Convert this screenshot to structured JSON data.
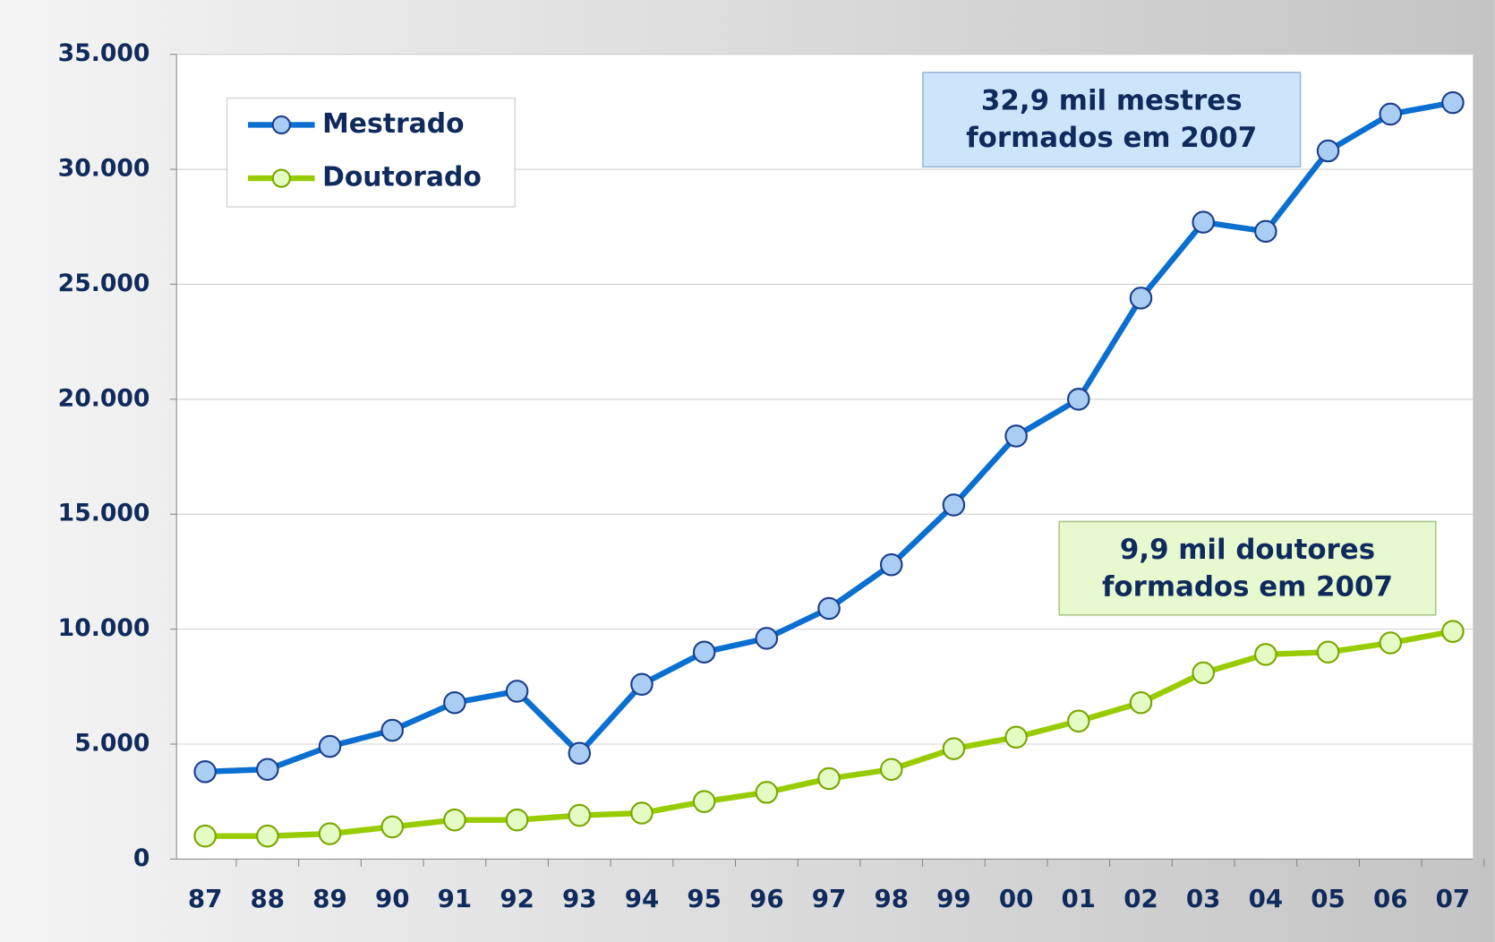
{
  "chart_data": {
    "type": "line",
    "categories": [
      "87",
      "88",
      "89",
      "90",
      "91",
      "92",
      "93",
      "94",
      "95",
      "96",
      "97",
      "98",
      "99",
      "00",
      "01",
      "02",
      "03",
      "04",
      "05",
      "06",
      "07"
    ],
    "series": [
      {
        "name": "Mestrado",
        "color": "#0a6fd0",
        "marker_fill": "#a9cdf3",
        "marker_stroke": "#1c3f8c",
        "values": [
          3800,
          3900,
          4900,
          5600,
          6800,
          7300,
          4600,
          7600,
          9000,
          9600,
          10900,
          12800,
          15400,
          18400,
          20000,
          24400,
          27700,
          27300,
          30800,
          32400,
          32900
        ]
      },
      {
        "name": "Doutorado",
        "color": "#99cc00",
        "marker_fill": "#e4fbc4",
        "marker_stroke": "#79a800",
        "values": [
          1000,
          1000,
          1100,
          1400,
          1700,
          1700,
          1900,
          2000,
          2500,
          2900,
          3500,
          3900,
          4800,
          5300,
          6000,
          6800,
          8100,
          8900,
          9000,
          9400,
          9900
        ]
      }
    ],
    "ylim": [
      0,
      35000
    ],
    "yticks": [
      0,
      {
        "value": 5000,
        "label": "5.000"
      },
      {
        "value": 10000,
        "label": "10.000"
      },
      {
        "value": 15000,
        "label": "15.000"
      },
      {
        "value": 20000,
        "label": "20.000"
      },
      {
        "value": 25000,
        "label": "25.000"
      },
      {
        "value": 30000,
        "label": "30.000"
      },
      {
        "value": 35000,
        "label": "35.000"
      }
    ],
    "grid": true,
    "legend": "top-left",
    "annotations": [
      {
        "lines": [
          "32,9 mil mestres",
          "formados em 2007"
        ],
        "fill": "#cde5fb",
        "stroke": "#9bb8d8"
      },
      {
        "lines": [
          "9,9 mil doutores",
          "formados em 2007"
        ],
        "fill": "#e7f9cf",
        "stroke": "#a9c98a"
      }
    ]
  }
}
